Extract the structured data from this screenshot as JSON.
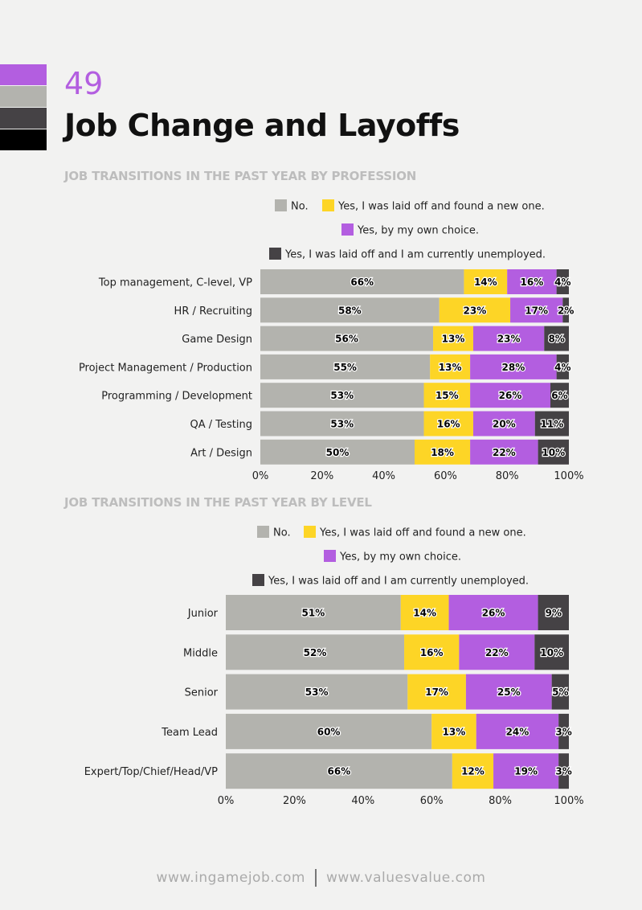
{
  "page": {
    "number": "49",
    "title": "Job Change and Layoffs",
    "footer_left": "www.ingamejob.com",
    "footer_right": "www.valuesvalue.com"
  },
  "colors": {
    "no": "#b3b3ae",
    "laid_off_new": "#fdd526",
    "own_choice": "#b35ee0",
    "unemployed": "#454245",
    "swatches": [
      "#b35ee0",
      "#b3b3ae",
      "#454245",
      "#000000"
    ]
  },
  "chart_data": [
    {
      "type": "bar",
      "orientation": "horizontal",
      "stacked": true,
      "title": "JOB TRANSITIONS IN THE PAST YEAR BY PROFESSION",
      "categories": [
        "Top management, C-level, VP",
        "HR / Recruiting",
        "Game Design",
        "Project Management / Production",
        "Programming / Development",
        "QA / Testing",
        "Art / Design"
      ],
      "series": [
        {
          "name": "No.",
          "values": [
            66,
            58,
            56,
            55,
            53,
            53,
            50
          ]
        },
        {
          "name": "Yes, I was laid off and found a new one.",
          "values": [
            14,
            23,
            13,
            13,
            15,
            16,
            18
          ]
        },
        {
          "name": "Yes, by my own choice.",
          "values": [
            16,
            17,
            23,
            28,
            26,
            20,
            22
          ]
        },
        {
          "name": "Yes, I was laid off and I am currently unemployed.",
          "values": [
            4,
            2,
            8,
            4,
            6,
            11,
            10
          ]
        }
      ],
      "xticks": [
        "0%",
        "20%",
        "40%",
        "60%",
        "80%",
        "100%"
      ],
      "xlim": [
        0,
        100
      ],
      "legend": "top"
    },
    {
      "type": "bar",
      "orientation": "horizontal",
      "stacked": true,
      "title": "JOB TRANSITIONS IN THE PAST YEAR BY LEVEL",
      "categories": [
        "Junior",
        "Middle",
        "Senior",
        "Team Lead",
        "Expert/Top/Chief/Head/VP"
      ],
      "series": [
        {
          "name": "No.",
          "values": [
            51,
            52,
            53,
            60,
            66
          ]
        },
        {
          "name": "Yes, I was laid off and found a new one.",
          "values": [
            14,
            16,
            17,
            13,
            12
          ]
        },
        {
          "name": "Yes, by my own choice.",
          "values": [
            26,
            22,
            25,
            24,
            19
          ]
        },
        {
          "name": "Yes, I was laid off and I am currently unemployed.",
          "values": [
            9,
            10,
            5,
            3,
            3
          ]
        }
      ],
      "xticks": [
        "0%",
        "20%",
        "40%",
        "60%",
        "80%",
        "100%"
      ],
      "xlim": [
        0,
        100
      ],
      "legend": "top"
    }
  ]
}
